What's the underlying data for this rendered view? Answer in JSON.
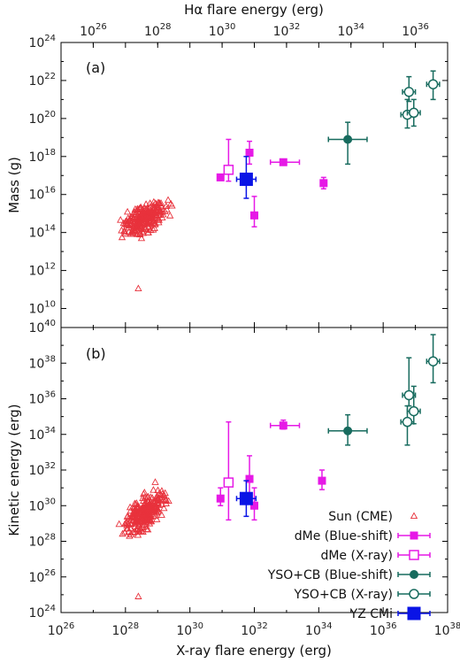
{
  "colors": {
    "sun": "#e8323c",
    "dme": "#e619e6",
    "yso": "#176b5e",
    "yzcmi": "#0a14e6",
    "axis": "#000000"
  },
  "chart_data": [
    {
      "type": "scatter",
      "panel_label": "(a)",
      "xlabel": "X-ray flare energy (erg)",
      "top_xlabel": "Hα flare energy (erg)",
      "ylabel": "Mass (g)",
      "xscale": "log",
      "yscale": "log",
      "xlim_exp": [
        26,
        38
      ],
      "ylim_exp": [
        9,
        24
      ],
      "top_xlim_exp": [
        25,
        37
      ],
      "x_tick_exps": [
        26,
        28,
        30,
        32,
        34,
        36,
        38
      ],
      "top_x_tick_exps": [
        26,
        28,
        30,
        32,
        34,
        36
      ],
      "y_tick_exps": [
        10,
        12,
        14,
        16,
        18,
        20,
        22,
        24
      ],
      "tick_base": "10",
      "series": [
        {
          "name": "Sun (CME)",
          "marker": "open-triangle",
          "color_key": "sun",
          "x_log_range": [
            27.6,
            29.6
          ],
          "y_log_range": [
            14.0,
            16.6
          ],
          "count": 260,
          "outlier": {
            "x_log": 28.4,
            "y_log": 11.05
          }
        },
        {
          "name": "dMe (Blue-shift)",
          "marker": "filled-square",
          "color_key": "dme",
          "points": [
            {
              "x": 30.95,
              "y": 16.9
            },
            {
              "x": 32.0,
              "y": 14.9,
              "yerr": [
                14.3,
                15.9
              ]
            },
            {
              "x": 31.85,
              "y": 18.2,
              "yerr": [
                17.6,
                18.8
              ]
            },
            {
              "x": 32.9,
              "y": 17.7,
              "xerr": [
                32.5,
                33.4
              ]
            },
            {
              "x": 34.15,
              "y": 16.6,
              "yerr": [
                16.3,
                16.9
              ]
            }
          ]
        },
        {
          "name": "dMe (X-ray)",
          "marker": "open-square",
          "color_key": "dme",
          "points": [
            {
              "x": 31.2,
              "y": 17.3,
              "yerr": [
                16.7,
                18.9
              ]
            }
          ]
        },
        {
          "name": "YSO+CB (Blue-shift)",
          "marker": "filled-circle",
          "color_key": "yso",
          "points": [
            {
              "x": 34.9,
              "y": 18.9,
              "xerr": [
                34.3,
                35.5
              ],
              "yerr": [
                17.6,
                19.8
              ]
            }
          ]
        },
        {
          "name": "YSO+CB (X-ray)",
          "marker": "open-circle",
          "color_key": "yso",
          "points": [
            {
              "x": 36.8,
              "y": 21.4,
              "xerr": [
                36.6,
                37.0
              ],
              "yerr": [
                20.9,
                22.2
              ]
            },
            {
              "x": 36.75,
              "y": 20.2,
              "xerr": [
                36.55,
                36.95
              ],
              "yerr": [
                19.5,
                21.0
              ]
            },
            {
              "x": 36.95,
              "y": 20.3,
              "xerr": [
                36.75,
                37.15
              ],
              "yerr": [
                19.6,
                21.0
              ]
            },
            {
              "x": 37.55,
              "y": 21.8,
              "xerr": [
                37.35,
                37.75
              ],
              "yerr": [
                21.0,
                22.5
              ]
            }
          ]
        },
        {
          "name": "YZ CMi",
          "marker": "filled-square-large",
          "color_key": "yzcmi",
          "points": [
            {
              "x": 31.75,
              "y": 16.8,
              "xerr": [
                31.45,
                32.05
              ],
              "yerr": [
                15.8,
                18.0
              ]
            }
          ]
        }
      ]
    },
    {
      "type": "scatter",
      "panel_label": "(b)",
      "xlabel": "X-ray flare energy (erg)",
      "ylabel": "Kinetic energy (erg)",
      "xscale": "log",
      "yscale": "log",
      "xlim_exp": [
        26,
        38
      ],
      "ylim_exp": [
        24,
        40
      ],
      "x_tick_exps": [
        26,
        28,
        30,
        32,
        34,
        36,
        38
      ],
      "y_tick_exps": [
        24,
        26,
        28,
        30,
        32,
        34,
        36,
        38,
        40
      ],
      "tick_base": "10",
      "legend_position": "bottom-right",
      "series": [
        {
          "name": "Sun (CME)",
          "marker": "open-triangle",
          "color_key": "sun",
          "x_log_range": [
            27.6,
            29.6
          ],
          "y_log_range": [
            28.6,
            32.4
          ],
          "count": 260,
          "outlier": {
            "x_log": 28.4,
            "y_log": 24.9
          }
        },
        {
          "name": "dMe (Blue-shift)",
          "marker": "filled-square",
          "color_key": "dme",
          "points": [
            {
              "x": 30.95,
              "y": 30.4,
              "yerr": [
                30.0,
                31.0
              ]
            },
            {
              "x": 31.85,
              "y": 31.5,
              "yerr": [
                30.6,
                32.8
              ]
            },
            {
              "x": 32.0,
              "y": 30.0,
              "yerr": [
                29.2,
                31.0
              ]
            },
            {
              "x": 32.9,
              "y": 34.5,
              "xerr": [
                32.5,
                33.4
              ],
              "yerr": [
                34.3,
                34.8
              ]
            },
            {
              "x": 34.1,
              "y": 31.4,
              "yerr": [
                30.9,
                32.0
              ]
            }
          ]
        },
        {
          "name": "dMe (X-ray)",
          "marker": "open-square",
          "color_key": "dme",
          "points": [
            {
              "x": 31.2,
              "y": 31.3,
              "yerr": [
                29.2,
                34.7
              ]
            }
          ]
        },
        {
          "name": "YSO+CB (Blue-shift)",
          "marker": "filled-circle",
          "color_key": "yso",
          "points": [
            {
              "x": 34.9,
              "y": 34.2,
              "xerr": [
                34.3,
                35.5
              ],
              "yerr": [
                33.4,
                35.1
              ]
            }
          ]
        },
        {
          "name": "YSO+CB (X-ray)",
          "marker": "open-circle",
          "color_key": "yso",
          "points": [
            {
              "x": 36.8,
              "y": 36.2,
              "xerr": [
                36.6,
                37.0
              ],
              "yerr": [
                35.6,
                38.3
              ]
            },
            {
              "x": 36.75,
              "y": 34.7,
              "xerr": [
                36.55,
                36.95
              ],
              "yerr": [
                33.4,
                35.6
              ]
            },
            {
              "x": 36.95,
              "y": 35.3,
              "xerr": [
                36.75,
                37.15
              ],
              "yerr": [
                34.6,
                36.7
              ]
            },
            {
              "x": 37.55,
              "y": 38.1,
              "xerr": [
                37.35,
                37.75
              ],
              "yerr": [
                36.9,
                39.6
              ]
            }
          ]
        },
        {
          "name": "YZ CMi",
          "marker": "filled-square-large",
          "color_key": "yzcmi",
          "points": [
            {
              "x": 31.75,
              "y": 30.4,
              "xerr": [
                31.45,
                32.05
              ],
              "yerr": [
                29.4,
                31.4
              ]
            }
          ]
        }
      ]
    }
  ]
}
